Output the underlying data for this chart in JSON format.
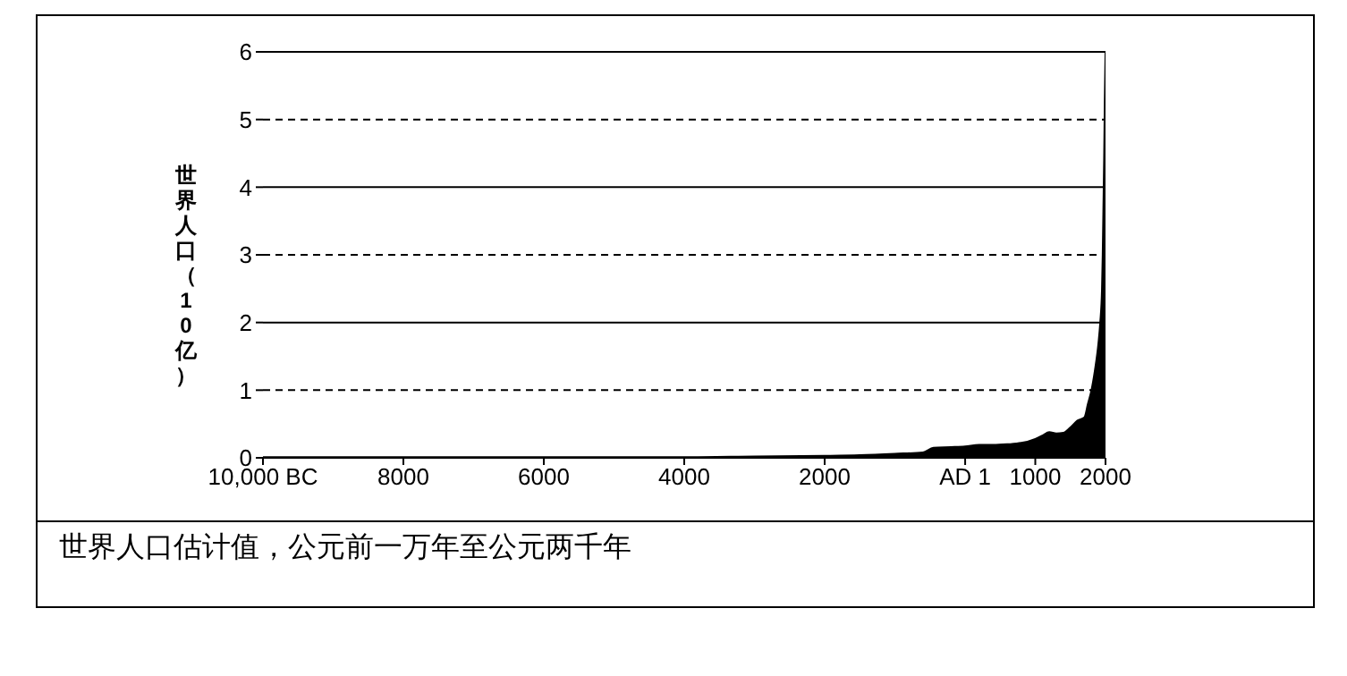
{
  "chart_data": {
    "type": "area",
    "title": "世界人口估计值，公元前一万年至公元两千年",
    "ylabel": "世界人口（10亿）",
    "x": [
      -10000,
      -8000,
      -6000,
      -4000,
      -3000,
      -2000,
      -1500,
      -1000,
      -600,
      -450,
      -200,
      1,
      200,
      400,
      600,
      800,
      1000,
      1100,
      1200,
      1300,
      1400,
      1500,
      1600,
      1700,
      1750,
      1800,
      1850,
      1900,
      1925,
      1950,
      1960,
      1970,
      1980,
      1990,
      2000
    ],
    "values": [
      0.01,
      0.01,
      0.01,
      0.01,
      0.02,
      0.03,
      0.04,
      0.06,
      0.08,
      0.15,
      0.16,
      0.17,
      0.19,
      0.19,
      0.2,
      0.22,
      0.28,
      0.33,
      0.38,
      0.36,
      0.37,
      0.45,
      0.55,
      0.6,
      0.8,
      1.0,
      1.3,
      1.7,
      2.0,
      2.5,
      3.0,
      3.7,
      4.4,
      5.3,
      6.0
    ],
    "color": "#000000",
    "xlim": [
      -10000,
      2000
    ],
    "xticks": [
      {
        "value": -10000,
        "label": "10,000 BC"
      },
      {
        "value": -8000,
        "label": "8000"
      },
      {
        "value": -6000,
        "label": "6000"
      },
      {
        "value": -4000,
        "label": "4000"
      },
      {
        "value": -2000,
        "label": "2000"
      },
      {
        "value": 1,
        "label": "AD 1"
      },
      1000,
      2000
    ],
    "ylim": [
      0,
      6
    ],
    "yticks": [
      0,
      1,
      2,
      3,
      4,
      5,
      6
    ],
    "grid": "y"
  }
}
